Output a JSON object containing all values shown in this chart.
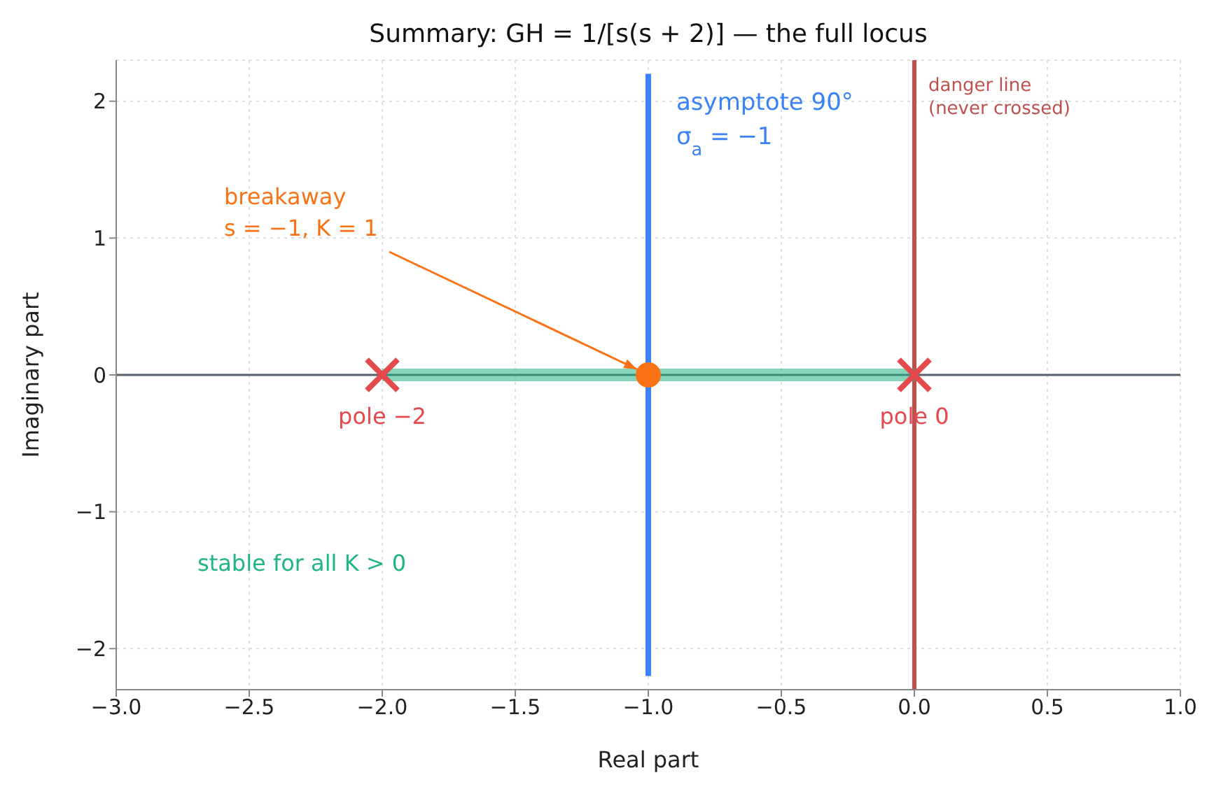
{
  "chart_data": {
    "type": "line",
    "title": "Summary: GH = 1/[s(s + 2)] — the full locus",
    "xlabel": "Real part",
    "ylabel": "Imaginary part",
    "xlim": [
      -3,
      1
    ],
    "xticks": [
      {
        "value": -3,
        "label": "−3.0"
      },
      -2.5,
      {
        "value": -2,
        "label": "−2.0"
      },
      -1.5,
      {
        "value": -1,
        "label": "−1.0"
      },
      -0.5,
      {
        "value": 0,
        "label": "0.0"
      },
      0.5,
      {
        "value": 1,
        "label": "1.0"
      }
    ],
    "ylim": [
      -2.3,
      2.3
    ],
    "yticks": [
      -2,
      -1,
      0,
      1,
      2
    ],
    "grid": true,
    "legend": false,
    "series": [
      {
        "color": "#20b583",
        "colors": [
          "#e5484d",
          "#e5484d"
        ],
        "x": [
          -2,
          0
        ],
        "values": [
          0,
          0
        ],
        "marker": "cross"
      },
      {
        "color": "#3b82f6",
        "x": [
          -1,
          -1
        ],
        "values": [
          -2.2,
          2.2
        ]
      },
      {
        "type": "scatter",
        "color": "#f97316",
        "x": [
          -1
        ],
        "values": [
          0
        ],
        "marker": "circle"
      }
    ],
    "ref_lines": [
      {
        "axis": "x",
        "value": 0,
        "label": "danger line\n(never crossed)",
        "color": "#c0504d"
      },
      {
        "axis": "y",
        "value": 0,
        "label": null,
        "color": "#555f6d"
      }
    ],
    "annotations": [
      {
        "text": "pole −2",
        "x": -2,
        "y": 0
      },
      {
        "text": "pole 0",
        "x": 0,
        "y": 0
      },
      {
        "text": "breakaway\ns = −1, K = 1",
        "x": -1,
        "y": 0
      },
      {
        "text": "asymptote 90°\nσ$_{a}$ = −1",
        "x": -1,
        "y": 2
      },
      "stable for all K > 0"
    ]
  }
}
